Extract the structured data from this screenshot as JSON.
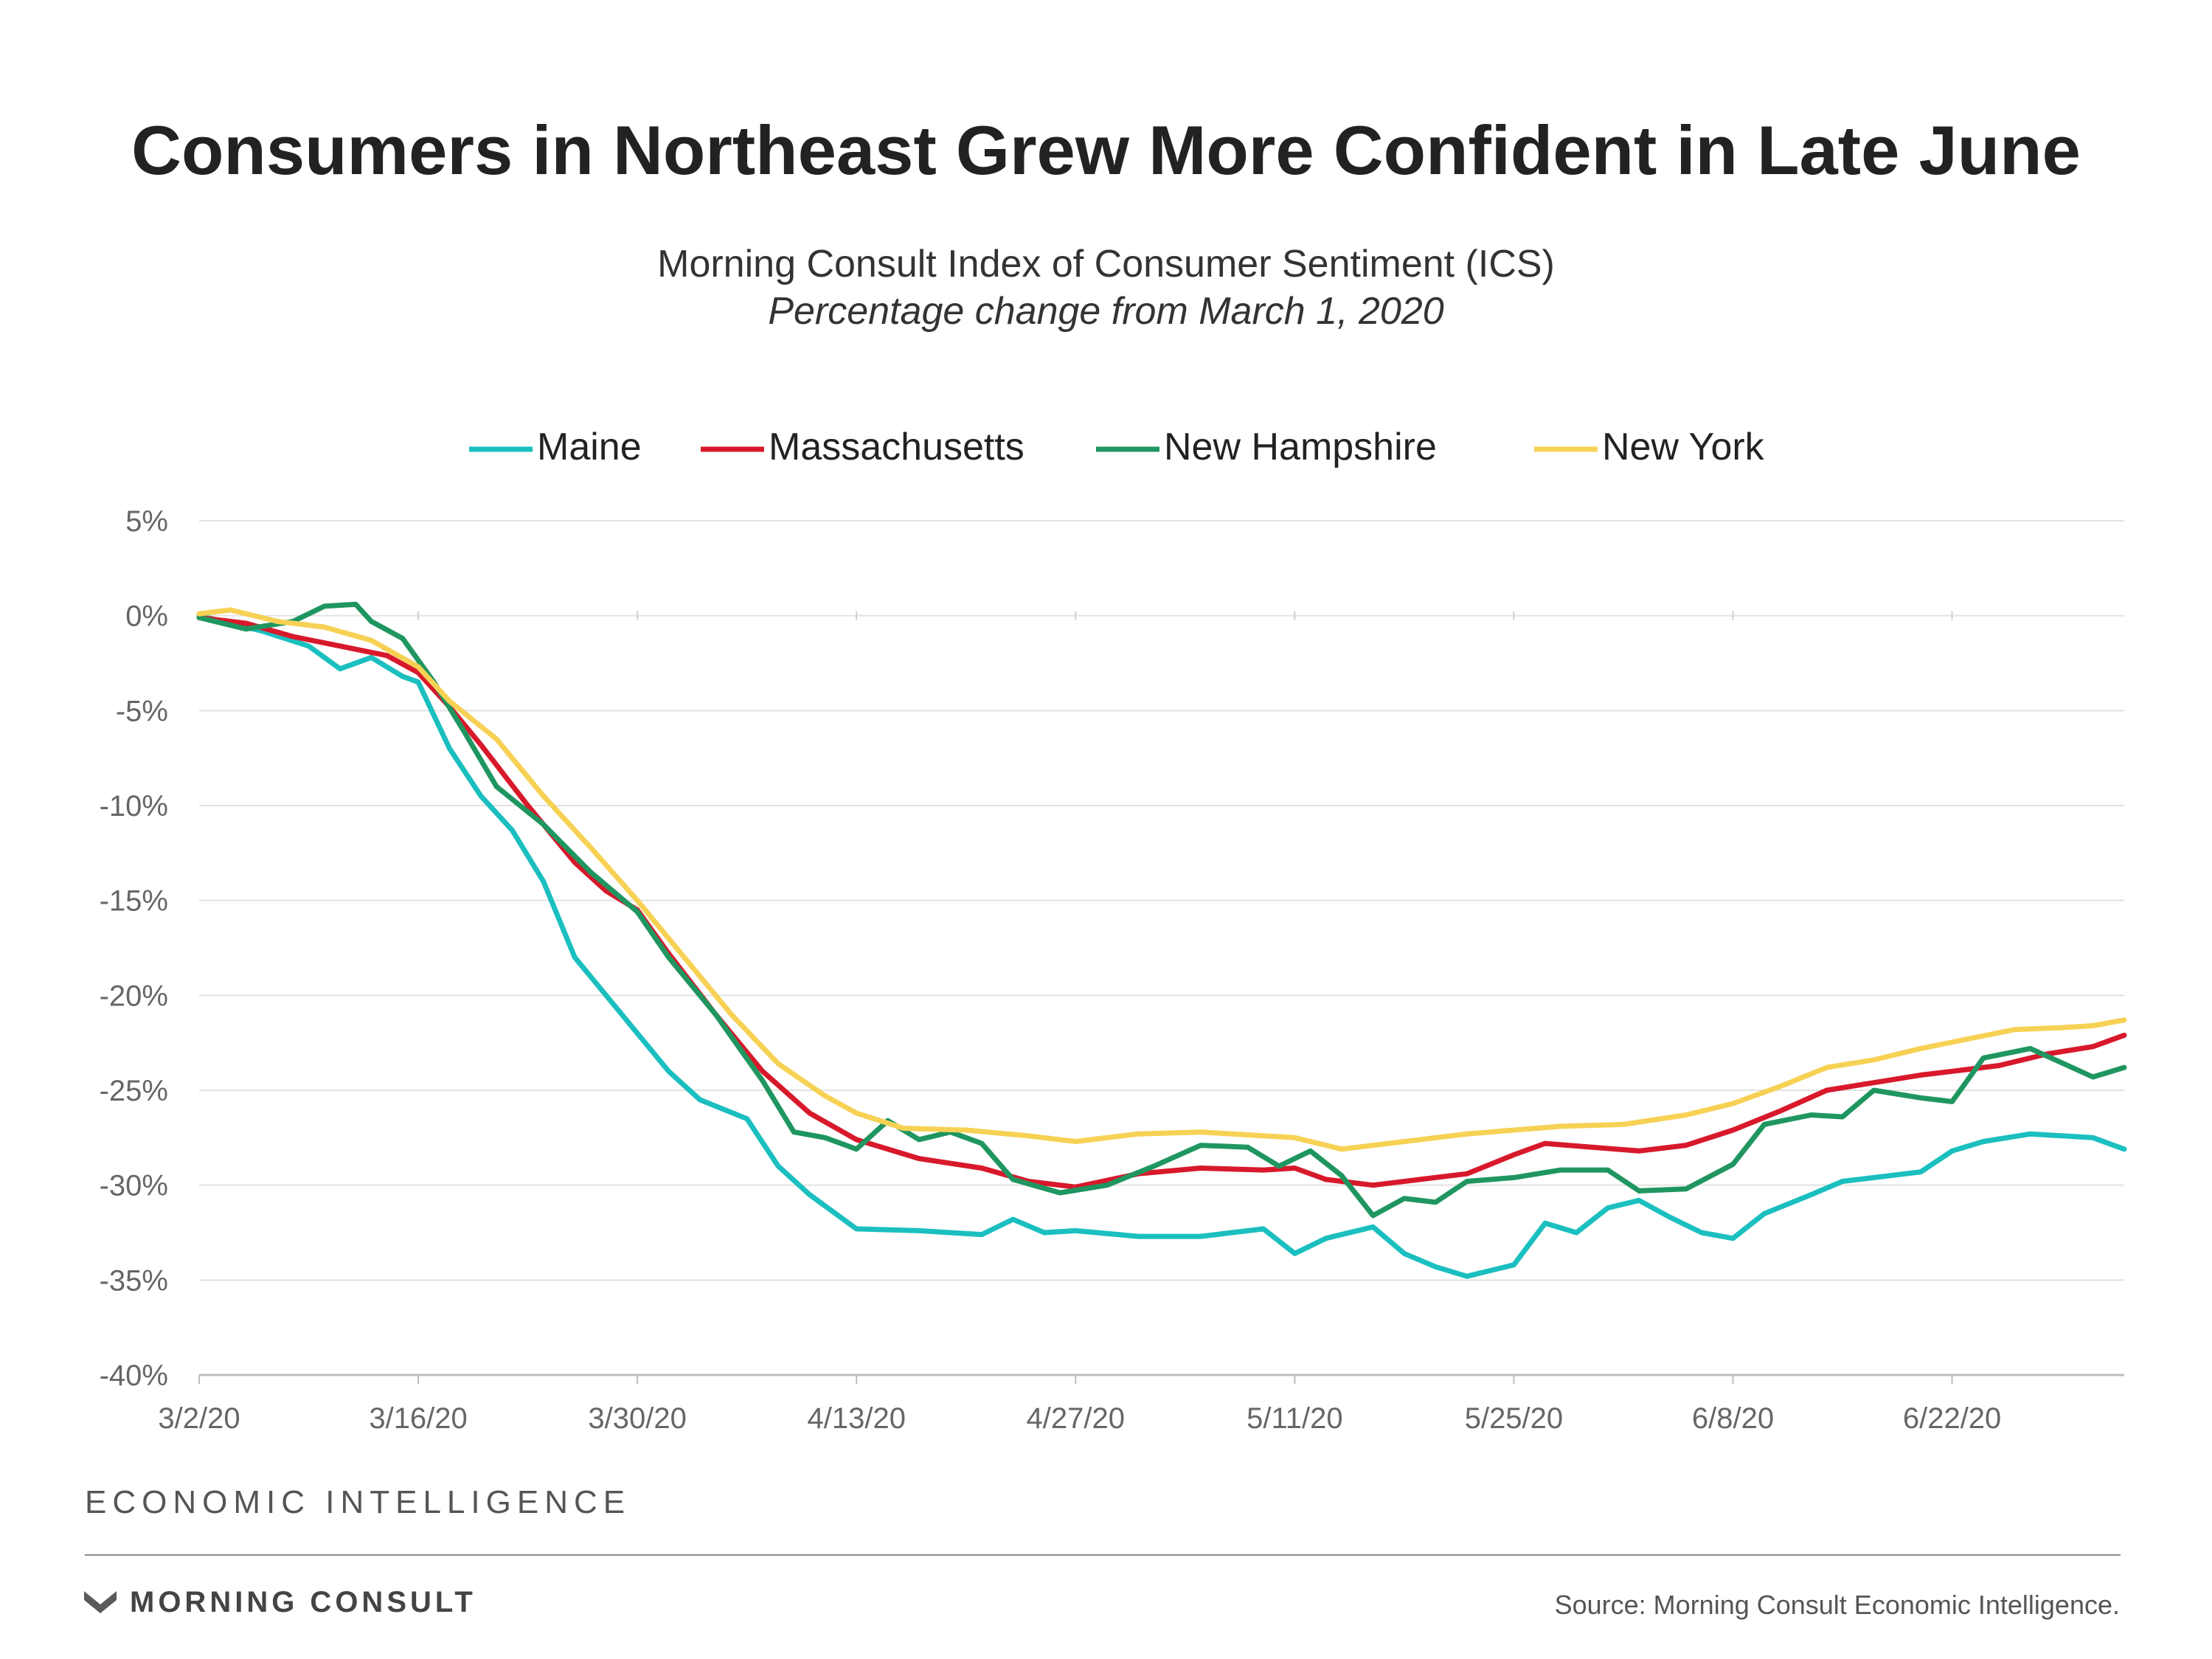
{
  "header": {
    "title": "Consumers in Northeast Grew More Confident in Late June",
    "subtitle": "Morning Consult Index of Consumer Sentiment (ICS)",
    "subtitle_italic": "Percentage change from March 1, 2020"
  },
  "footer": {
    "section_label": "ECONOMIC INTELLIGENCE",
    "logo_text": "MORNING CONSULT",
    "source": "Source: Morning Consult Economic Intelligence."
  },
  "chart_data": {
    "type": "line",
    "title": "Consumers in Northeast Grew More Confident in Late June",
    "subtitle": "Morning Consult Index of Consumer Sentiment (ICS)",
    "xlabel": "",
    "ylabel": "",
    "x_start": "3/2/20",
    "x_end": "7/3/20",
    "x_ticks": [
      "3/2/20",
      "3/16/20",
      "3/30/20",
      "4/13/20",
      "4/27/20",
      "5/11/20",
      "5/25/20",
      "6/8/20",
      "6/22/20"
    ],
    "ylim": [
      -40,
      5
    ],
    "y_ticks": [
      5,
      0,
      -5,
      -10,
      -15,
      -20,
      -25,
      -30,
      -35,
      -40
    ],
    "y_tick_labels": [
      "5%",
      "0%",
      "-5%",
      "-10%",
      "-15%",
      "-20%",
      "-25%",
      "-30%",
      "-35%",
      "-40%"
    ],
    "grid": true,
    "legend_position": "top-center",
    "series": [
      {
        "name": "Maine",
        "color": "#1bbfbf",
        "points": [
          [
            "3/2/20",
            0
          ],
          [
            "3/6/20",
            -0.8
          ],
          [
            "3/9/20",
            -1.6
          ],
          [
            "3/11/20",
            -2.8
          ],
          [
            "3/13/20",
            -2.2
          ],
          [
            "3/15/20",
            -3.2
          ],
          [
            "3/16/20",
            -3.5
          ],
          [
            "3/18/20",
            -7
          ],
          [
            "3/20/20",
            -9.5
          ],
          [
            "3/22/20",
            -11.3
          ],
          [
            "3/24/20",
            -14
          ],
          [
            "3/26/20",
            -18
          ],
          [
            "3/28/20",
            -20
          ],
          [
            "3/30/20",
            -22
          ],
          [
            "4/1/20",
            -24
          ],
          [
            "4/3/20",
            -25.5
          ],
          [
            "4/6/20",
            -26.5
          ],
          [
            "4/8/20",
            -29
          ],
          [
            "4/10/20",
            -30.5
          ],
          [
            "4/13/20",
            -32.3
          ],
          [
            "4/17/20",
            -32.4
          ],
          [
            "4/21/20",
            -32.6
          ],
          [
            "4/23/20",
            -31.8
          ],
          [
            "4/25/20",
            -32.5
          ],
          [
            "4/27/20",
            -32.4
          ],
          [
            "5/1/20",
            -32.7
          ],
          [
            "5/5/20",
            -32.7
          ],
          [
            "5/9/20",
            -32.3
          ],
          [
            "5/11/20",
            -33.6
          ],
          [
            "5/13/20",
            -32.8
          ],
          [
            "5/16/20",
            -32.2
          ],
          [
            "5/18/20",
            -33.6
          ],
          [
            "5/20/20",
            -34.3
          ],
          [
            "5/22/20",
            -34.8
          ],
          [
            "5/25/20",
            -34.2
          ],
          [
            "5/27/20",
            -32
          ],
          [
            "5/29/20",
            -32.5
          ],
          [
            "5/31/20",
            -31.2
          ],
          [
            "6/2/20",
            -30.8
          ],
          [
            "6/4/20",
            -31.7
          ],
          [
            "6/6/20",
            -32.5
          ],
          [
            "6/8/20",
            -32.8
          ],
          [
            "6/10/20",
            -31.5
          ],
          [
            "6/13/20",
            -30.5
          ],
          [
            "6/15/20",
            -29.8
          ],
          [
            "6/18/20",
            -29.5
          ],
          [
            "6/20/20",
            -29.3
          ],
          [
            "6/22/20",
            -28.2
          ],
          [
            "6/24/20",
            -27.7
          ],
          [
            "6/27/20",
            -27.3
          ],
          [
            "7/1/20",
            -27.5
          ],
          [
            "7/3/20",
            -28.1
          ]
        ]
      },
      {
        "name": "Massachusetts",
        "color": "#d7192b",
        "points": [
          [
            "3/2/20",
            -0.1
          ],
          [
            "3/5/20",
            -0.4
          ],
          [
            "3/8/20",
            -1.1
          ],
          [
            "3/11/20",
            -1.6
          ],
          [
            "3/14/20",
            -2.1
          ],
          [
            "3/16/20",
            -3
          ],
          [
            "3/18/20",
            -4.8
          ],
          [
            "3/20/20",
            -6.8
          ],
          [
            "3/23/20",
            -10
          ],
          [
            "3/26/20",
            -13
          ],
          [
            "3/28/20",
            -14.5
          ],
          [
            "3/30/20",
            -15.5
          ],
          [
            "4/1/20",
            -17.8
          ],
          [
            "4/4/20",
            -21
          ],
          [
            "4/7/20",
            -24
          ],
          [
            "4/10/20",
            -26.2
          ],
          [
            "4/13/20",
            -27.6
          ],
          [
            "4/17/20",
            -28.6
          ],
          [
            "4/21/20",
            -29.1
          ],
          [
            "4/24/20",
            -29.8
          ],
          [
            "4/27/20",
            -30.1
          ],
          [
            "5/1/20",
            -29.4
          ],
          [
            "5/5/20",
            -29.1
          ],
          [
            "5/9/20",
            -29.2
          ],
          [
            "5/11/20",
            -29.1
          ],
          [
            "5/13/20",
            -29.7
          ],
          [
            "5/16/20",
            -30
          ],
          [
            "5/19/20",
            -29.7
          ],
          [
            "5/22/20",
            -29.4
          ],
          [
            "5/25/20",
            -28.4
          ],
          [
            "5/27/20",
            -27.8
          ],
          [
            "5/30/20",
            -28
          ],
          [
            "6/2/20",
            -28.2
          ],
          [
            "6/5/20",
            -27.9
          ],
          [
            "6/8/20",
            -27.1
          ],
          [
            "6/11/20",
            -26.1
          ],
          [
            "6/14/20",
            -25
          ],
          [
            "6/17/20",
            -24.6
          ],
          [
            "6/20/20",
            -24.2
          ],
          [
            "6/22/20",
            -24
          ],
          [
            "6/25/20",
            -23.7
          ],
          [
            "6/28/20",
            -23.1
          ],
          [
            "7/1/20",
            -22.7
          ],
          [
            "7/3/20",
            -22.1
          ]
        ]
      },
      {
        "name": "New Hampshire",
        "color": "#1f9660",
        "points": [
          [
            "3/2/20",
            -0.1
          ],
          [
            "3/5/20",
            -0.7
          ],
          [
            "3/8/20",
            -0.3
          ],
          [
            "3/10/20",
            0.5
          ],
          [
            "3/12/20",
            0.6
          ],
          [
            "3/13/20",
            -0.3
          ],
          [
            "3/15/20",
            -1.2
          ],
          [
            "3/17/20",
            -3.5
          ],
          [
            "3/19/20",
            -6.2
          ],
          [
            "3/21/20",
            -9
          ],
          [
            "3/24/20",
            -11
          ],
          [
            "3/27/20",
            -13.5
          ],
          [
            "3/30/20",
            -15.6
          ],
          [
            "4/1/20",
            -18
          ],
          [
            "4/4/20",
            -21
          ],
          [
            "4/7/20",
            -24.5
          ],
          [
            "4/9/20",
            -27.2
          ],
          [
            "4/11/20",
            -27.5
          ],
          [
            "4/13/20",
            -28.1
          ],
          [
            "4/15/20",
            -26.6
          ],
          [
            "4/17/20",
            -27.6
          ],
          [
            "4/19/20",
            -27.2
          ],
          [
            "4/21/20",
            -27.8
          ],
          [
            "4/23/20",
            -29.7
          ],
          [
            "4/26/20",
            -30.4
          ],
          [
            "4/29/20",
            -30
          ],
          [
            "5/2/20",
            -29
          ],
          [
            "5/5/20",
            -27.9
          ],
          [
            "5/8/20",
            -28
          ],
          [
            "5/10/20",
            -29
          ],
          [
            "5/12/20",
            -28.2
          ],
          [
            "5/14/20",
            -29.5
          ],
          [
            "5/16/20",
            -31.6
          ],
          [
            "5/18/20",
            -30.7
          ],
          [
            "5/20/20",
            -30.9
          ],
          [
            "5/22/20",
            -29.8
          ],
          [
            "5/25/20",
            -29.6
          ],
          [
            "5/28/20",
            -29.2
          ],
          [
            "5/31/20",
            -29.2
          ],
          [
            "6/2/20",
            -30.3
          ],
          [
            "6/5/20",
            -30.2
          ],
          [
            "6/8/20",
            -28.9
          ],
          [
            "6/10/20",
            -26.8
          ],
          [
            "6/13/20",
            -26.3
          ],
          [
            "6/15/20",
            -26.4
          ],
          [
            "6/17/20",
            -25
          ],
          [
            "6/20/20",
            -25.4
          ],
          [
            "6/22/20",
            -25.6
          ],
          [
            "6/24/20",
            -23.3
          ],
          [
            "6/27/20",
            -22.8
          ],
          [
            "7/1/20",
            -24.3
          ],
          [
            "7/3/20",
            -23.8
          ]
        ]
      },
      {
        "name": "New York",
        "color": "#f7d154",
        "points": [
          [
            "3/2/20",
            0.1
          ],
          [
            "3/4/20",
            0.3
          ],
          [
            "3/7/20",
            -0.3
          ],
          [
            "3/10/20",
            -0.6
          ],
          [
            "3/13/20",
            -1.3
          ],
          [
            "3/16/20",
            -2.7
          ],
          [
            "3/18/20",
            -4.5
          ],
          [
            "3/21/20",
            -6.5
          ],
          [
            "3/24/20",
            -9.5
          ],
          [
            "3/27/20",
            -12.2
          ],
          [
            "3/30/20",
            -15
          ],
          [
            "4/2/20",
            -18
          ],
          [
            "4/5/20",
            -21
          ],
          [
            "4/8/20",
            -23.6
          ],
          [
            "4/11/20",
            -25.3
          ],
          [
            "4/13/20",
            -26.2
          ],
          [
            "4/16/20",
            -27
          ],
          [
            "4/20/20",
            -27.1
          ],
          [
            "4/24/20",
            -27.4
          ],
          [
            "4/27/20",
            -27.7
          ],
          [
            "5/1/20",
            -27.3
          ],
          [
            "5/5/20",
            -27.2
          ],
          [
            "5/9/20",
            -27.4
          ],
          [
            "5/11/20",
            -27.5
          ],
          [
            "5/14/20",
            -28.1
          ],
          [
            "5/18/20",
            -27.7
          ],
          [
            "5/22/20",
            -27.3
          ],
          [
            "5/25/20",
            -27.1
          ],
          [
            "5/28/20",
            -26.9
          ],
          [
            "6/1/20",
            -26.8
          ],
          [
            "6/5/20",
            -26.3
          ],
          [
            "6/8/20",
            -25.7
          ],
          [
            "6/11/20",
            -24.8
          ],
          [
            "6/14/20",
            -23.8
          ],
          [
            "6/17/20",
            -23.4
          ],
          [
            "6/20/20",
            -22.8
          ],
          [
            "6/23/20",
            -22.3
          ],
          [
            "6/26/20",
            -21.8
          ],
          [
            "6/29/20",
            -21.7
          ],
          [
            "7/1/20",
            -21.6
          ],
          [
            "7/3/20",
            -21.3
          ]
        ]
      }
    ]
  }
}
